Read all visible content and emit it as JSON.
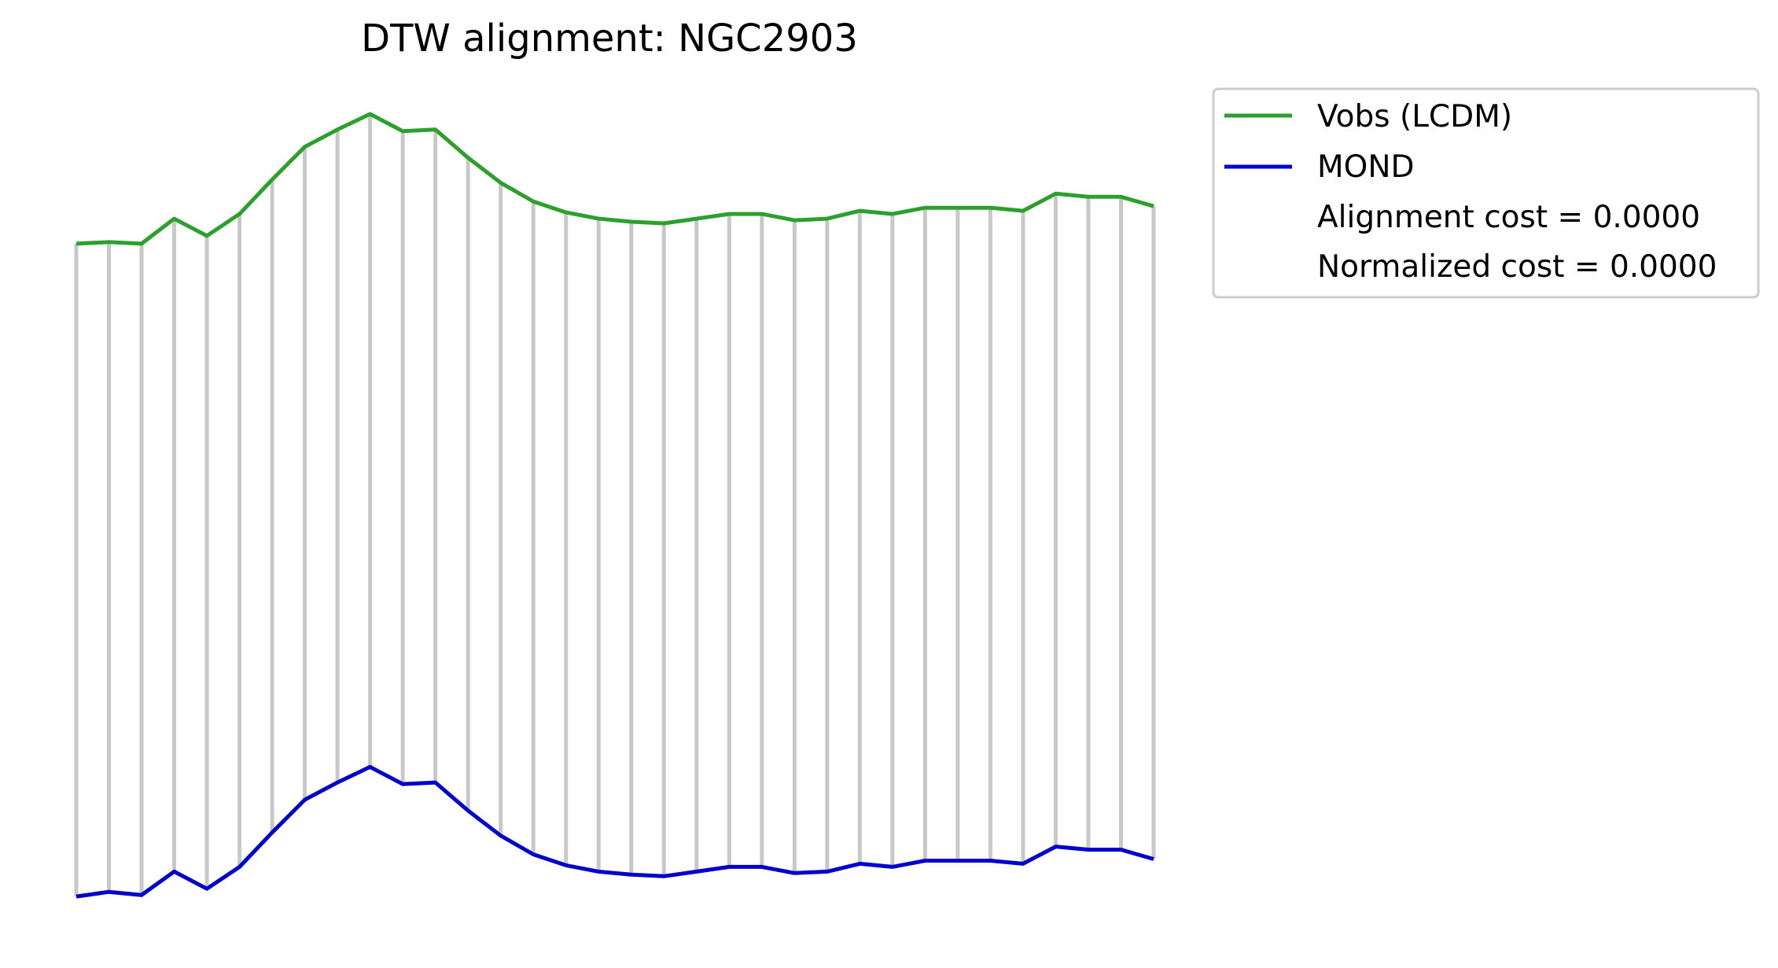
{
  "chart_data": {
    "type": "line",
    "title": "DTW alignment: NGC2903",
    "xlabel": "",
    "ylabel": "",
    "axes_visible": false,
    "grid": false,
    "legend_position": "outside-top-right",
    "colors": {
      "vobs": "#2ca02c",
      "mond": "#0000cd",
      "alignment_lines": "#c8c8c8"
    },
    "x": [
      0,
      1,
      2,
      3,
      4,
      5,
      6,
      7,
      8,
      9,
      10,
      11,
      12,
      13,
      14,
      15,
      16,
      17,
      18,
      19,
      20,
      21,
      22,
      23,
      24,
      25,
      26,
      27,
      28,
      29,
      30,
      31,
      32,
      33
    ],
    "series": [
      {
        "name": "Vobs (LCDM)",
        "key": "vobs",
        "values": [
          0.64,
          0.63,
          0.64,
          0.48,
          0.59,
          0.45,
          0.23,
          0.02,
          -0.09,
          -0.19,
          -0.08,
          -0.09,
          0.09,
          0.25,
          0.37,
          0.44,
          0.48,
          0.5,
          0.51,
          0.48,
          0.45,
          0.45,
          0.49,
          0.48,
          0.43,
          0.45,
          0.41,
          0.41,
          0.41,
          0.43,
          0.32,
          0.34,
          0.34,
          0.4
        ]
      },
      {
        "name": "MOND",
        "key": "mond",
        "values": [
          4.82,
          4.79,
          4.81,
          4.66,
          4.77,
          4.63,
          4.41,
          4.2,
          4.09,
          3.99,
          4.1,
          4.09,
          4.27,
          4.43,
          4.55,
          4.62,
          4.66,
          4.68,
          4.69,
          4.66,
          4.63,
          4.63,
          4.67,
          4.66,
          4.61,
          4.63,
          4.59,
          4.59,
          4.59,
          4.61,
          4.5,
          4.52,
          4.52,
          4.58
        ]
      }
    ],
    "alignment_path": [
      [
        0,
        0
      ],
      [
        1,
        1
      ],
      [
        2,
        2
      ],
      [
        3,
        3
      ],
      [
        4,
        4
      ],
      [
        5,
        5
      ],
      [
        6,
        6
      ],
      [
        7,
        7
      ],
      [
        8,
        8
      ],
      [
        9,
        9
      ],
      [
        10,
        10
      ],
      [
        11,
        11
      ],
      [
        12,
        12
      ],
      [
        13,
        13
      ],
      [
        14,
        14
      ],
      [
        15,
        15
      ],
      [
        16,
        16
      ],
      [
        17,
        17
      ],
      [
        18,
        18
      ],
      [
        19,
        19
      ],
      [
        20,
        20
      ],
      [
        21,
        21
      ],
      [
        22,
        22
      ],
      [
        23,
        23
      ],
      [
        24,
        24
      ],
      [
        25,
        25
      ],
      [
        26,
        26
      ],
      [
        27,
        27
      ],
      [
        28,
        28
      ],
      [
        29,
        29
      ],
      [
        30,
        30
      ],
      [
        31,
        31
      ],
      [
        32,
        32
      ],
      [
        33,
        33
      ]
    ],
    "legend": {
      "entries": [
        "Vobs (LCDM)",
        "MOND"
      ],
      "extra_text": [
        "Alignment cost = 0.0000",
        "Normalized cost = 0.0000"
      ]
    }
  }
}
